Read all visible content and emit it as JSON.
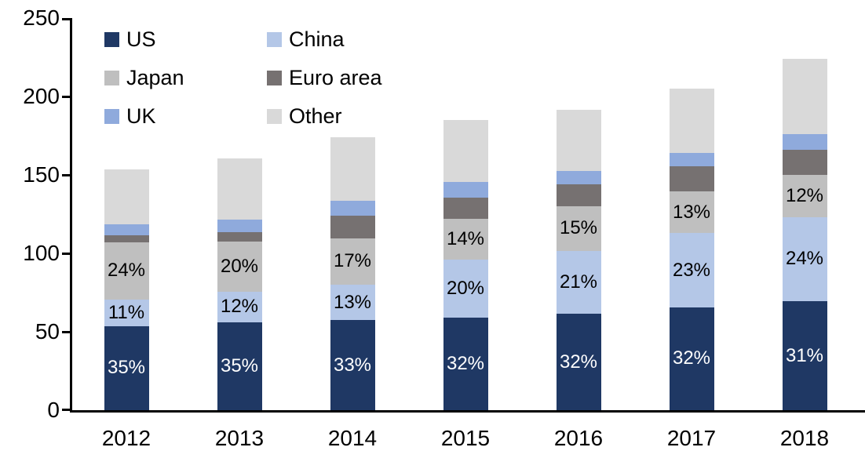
{
  "chart_data": {
    "type": "bar",
    "stacked": true,
    "title": "",
    "categories": [
      "2012",
      "2013",
      "2014",
      "2015",
      "2016",
      "2017",
      "2018"
    ],
    "series": [
      {
        "name": "US",
        "color": "#1f3864",
        "label_color": "#ffffff",
        "values": [
          53.6,
          56.2,
          57.4,
          59.1,
          61.3,
          65.6,
          69.4
        ],
        "labels": [
          "35%",
          "35%",
          "33%",
          "32%",
          "32%",
          "32%",
          "31%"
        ]
      },
      {
        "name": "China",
        "color": "#b4c7e7",
        "label_color": "#000000",
        "values": [
          16.8,
          19.3,
          22.6,
          37.0,
          40.2,
          47.2,
          53.8
        ],
        "labels": [
          "11%",
          "12%",
          "13%",
          "20%",
          "21%",
          "23%",
          "24%"
        ]
      },
      {
        "name": "Japan",
        "color": "#bfbfbf",
        "label_color": "#000000",
        "values": [
          36.8,
          32.1,
          29.6,
          25.9,
          28.7,
          26.7,
          26.9
        ],
        "labels": [
          "24%",
          "20%",
          "17%",
          "14%",
          "15%",
          "13%",
          "12%"
        ]
      },
      {
        "name": "Euro area",
        "color": "#767171",
        "label_color": "#000000",
        "values": [
          4.4,
          5.8,
          14.6,
          13.4,
          13.8,
          15.8,
          15.7
        ],
        "labels": [
          "",
          "",
          "",
          "",
          "",
          "",
          ""
        ]
      },
      {
        "name": "UK",
        "color": "#8faadc",
        "label_color": "#000000",
        "values": [
          7.0,
          8.0,
          9.5,
          10.0,
          8.7,
          8.7,
          10.0
        ],
        "labels": [
          "",
          "",
          "",
          "",
          "",
          "",
          ""
        ]
      },
      {
        "name": "Other",
        "color": "#d9d9d9",
        "label_color": "#000000",
        "values": [
          35.0,
          39.1,
          40.3,
          39.4,
          38.8,
          41.0,
          48.2
        ],
        "labels": [
          "",
          "",
          "",
          "",
          "",
          "",
          ""
        ]
      }
    ],
    "totals": [
      153.6,
      160.5,
      174.0,
      184.8,
      191.5,
      205.0,
      224.0
    ],
    "ylim": [
      0,
      250
    ],
    "yticks": [
      "0",
      "50",
      "100",
      "150",
      "200",
      "250"
    ],
    "grid": false,
    "legend_position": "top-left",
    "legend_columns": 2,
    "legend_order": [
      "US",
      "China",
      "Japan",
      "Euro area",
      "UK",
      "Other"
    ]
  }
}
